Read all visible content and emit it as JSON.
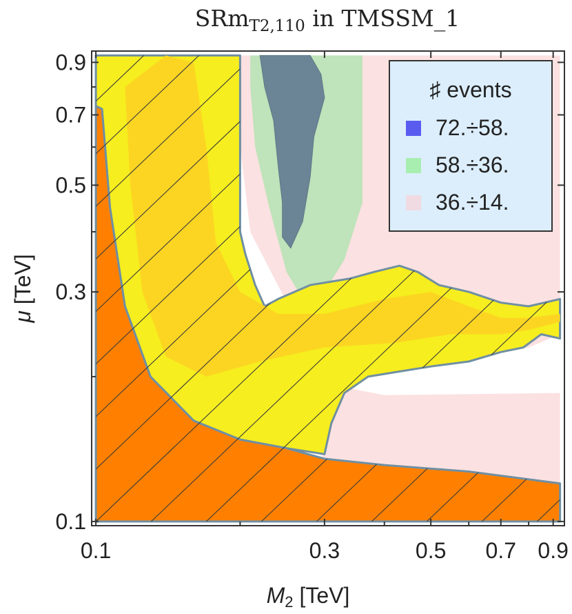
{
  "chart_data": {
    "type": "contour",
    "title": {
      "main": "SRm",
      "subscript": "T2,110",
      "suffix": " in TMSSM_1"
    },
    "xlabel": {
      "symbol": "M",
      "subscript": "2",
      "unit": " [TeV]"
    },
    "ylabel": {
      "symbol": "μ",
      "unit": " [TeV]"
    },
    "x_scale": "log",
    "y_scale": "log",
    "xlim": [
      0.098,
      0.95
    ],
    "ylim": [
      0.098,
      0.95
    ],
    "x_ticks": [
      {
        "value": 0.1,
        "label": "0.1"
      },
      {
        "value": 0.3,
        "label": "0.3"
      },
      {
        "value": 0.5,
        "label": "0.5"
      },
      {
        "value": 0.7,
        "label": "0.7"
      },
      {
        "value": 0.9,
        "label": "0.9"
      }
    ],
    "y_ticks": [
      {
        "value": 0.1,
        "label": "0.1"
      },
      {
        "value": 0.3,
        "label": "0.3"
      },
      {
        "value": 0.5,
        "label": "0.5"
      },
      {
        "value": 0.7,
        "label": "0.7"
      },
      {
        "value": 0.9,
        "label": "0.9"
      }
    ],
    "legend": {
      "title": "♯ events",
      "position": "top-right",
      "entries": [
        {
          "label": "72.÷58.",
          "color": "#5a5cf0"
        },
        {
          "label": "58.÷36.",
          "color": "#a8eeb0"
        },
        {
          "label": "36.÷14.",
          "color": "#f0dbe2"
        }
      ]
    },
    "regions": [
      {
        "name": "events-36-14",
        "fill": "#fbe1e1",
        "points": [
          [
            0.19,
            0.93
          ],
          [
            0.93,
            0.93
          ],
          [
            0.93,
            0.115
          ],
          [
            0.3,
            0.13
          ],
          [
            0.26,
            0.265
          ],
          [
            0.21,
            0.4
          ]
        ]
      },
      {
        "name": "events-58-36",
        "fill": "#bfe3ba",
        "points": [
          [
            0.21,
            0.93
          ],
          [
            0.36,
            0.93
          ],
          [
            0.36,
            0.46
          ],
          [
            0.33,
            0.35
          ],
          [
            0.3,
            0.3
          ],
          [
            0.27,
            0.29
          ],
          [
            0.25,
            0.33
          ],
          [
            0.23,
            0.45
          ],
          [
            0.215,
            0.6
          ],
          [
            0.21,
            0.8
          ]
        ]
      },
      {
        "name": "events-72-58",
        "fill": "#6b8596",
        "points": [
          [
            0.22,
            0.93
          ],
          [
            0.28,
            0.93
          ],
          [
            0.295,
            0.85
          ],
          [
            0.3,
            0.76
          ],
          [
            0.285,
            0.63
          ],
          [
            0.28,
            0.52
          ],
          [
            0.27,
            0.42
          ],
          [
            0.255,
            0.37
          ],
          [
            0.245,
            0.39
          ],
          [
            0.245,
            0.46
          ],
          [
            0.24,
            0.55
          ],
          [
            0.235,
            0.68
          ],
          [
            0.225,
            0.8
          ]
        ]
      },
      {
        "name": "white-band",
        "fill": "#ffffff",
        "points": [
          [
            0.32,
            0.2
          ],
          [
            0.42,
            0.21
          ],
          [
            0.55,
            0.215
          ],
          [
            0.7,
            0.225
          ],
          [
            0.8,
            0.23
          ],
          [
            0.93,
            0.245
          ],
          [
            0.93,
            0.185
          ],
          [
            0.4,
            0.183
          ],
          [
            0.33,
            0.19
          ]
        ]
      },
      {
        "name": "yellow-excluded",
        "fill": "#f6ee1e",
        "points": [
          [
            0.1,
            0.93
          ],
          [
            0.2,
            0.93
          ],
          [
            0.2,
            0.4
          ],
          [
            0.205,
            0.36
          ],
          [
            0.215,
            0.31
          ],
          [
            0.225,
            0.28
          ],
          [
            0.24,
            0.29
          ],
          [
            0.28,
            0.31
          ],
          [
            0.34,
            0.32
          ],
          [
            0.38,
            0.33
          ],
          [
            0.43,
            0.34
          ],
          [
            0.47,
            0.33
          ],
          [
            0.52,
            0.31
          ],
          [
            0.6,
            0.3
          ],
          [
            0.7,
            0.285
          ],
          [
            0.8,
            0.28
          ],
          [
            0.93,
            0.29
          ],
          [
            0.93,
            0.24
          ],
          [
            0.85,
            0.245
          ],
          [
            0.78,
            0.23
          ],
          [
            0.7,
            0.225
          ],
          [
            0.6,
            0.215
          ],
          [
            0.5,
            0.21
          ],
          [
            0.43,
            0.205
          ],
          [
            0.37,
            0.2
          ],
          [
            0.33,
            0.185
          ],
          [
            0.31,
            0.16
          ],
          [
            0.3,
            0.138
          ],
          [
            0.25,
            0.142
          ],
          [
            0.2,
            0.148
          ],
          [
            0.16,
            0.162
          ],
          [
            0.13,
            0.2
          ],
          [
            0.115,
            0.28
          ],
          [
            0.107,
            0.45
          ],
          [
            0.103,
            0.72
          ],
          [
            0.1,
            0.73
          ]
        ]
      },
      {
        "name": "yellow-inner",
        "fill": "#fcd522",
        "points": [
          [
            0.115,
            0.8
          ],
          [
            0.14,
            0.93
          ],
          [
            0.16,
            0.9
          ],
          [
            0.17,
            0.6
          ],
          [
            0.178,
            0.38
          ],
          [
            0.2,
            0.3
          ],
          [
            0.24,
            0.27
          ],
          [
            0.3,
            0.27
          ],
          [
            0.4,
            0.29
          ],
          [
            0.5,
            0.3
          ],
          [
            0.6,
            0.28
          ],
          [
            0.7,
            0.265
          ],
          [
            0.8,
            0.265
          ],
          [
            0.93,
            0.27
          ],
          [
            0.93,
            0.26
          ],
          [
            0.8,
            0.25
          ],
          [
            0.7,
            0.245
          ],
          [
            0.55,
            0.245
          ],
          [
            0.42,
            0.235
          ],
          [
            0.3,
            0.23
          ],
          [
            0.22,
            0.215
          ],
          [
            0.17,
            0.2
          ],
          [
            0.14,
            0.22
          ],
          [
            0.125,
            0.3
          ],
          [
            0.118,
            0.5
          ]
        ]
      },
      {
        "name": "orange-excluded",
        "fill": "#ff8000",
        "points": [
          [
            0.1,
            0.1
          ],
          [
            0.1,
            0.73
          ],
          [
            0.103,
            0.72
          ],
          [
            0.107,
            0.45
          ],
          [
            0.115,
            0.28
          ],
          [
            0.13,
            0.2
          ],
          [
            0.16,
            0.162
          ],
          [
            0.2,
            0.148
          ],
          [
            0.25,
            0.142
          ],
          [
            0.3,
            0.135
          ],
          [
            0.4,
            0.131
          ],
          [
            0.6,
            0.127
          ],
          [
            0.93,
            0.12
          ],
          [
            0.93,
            0.1
          ]
        ]
      }
    ]
  }
}
